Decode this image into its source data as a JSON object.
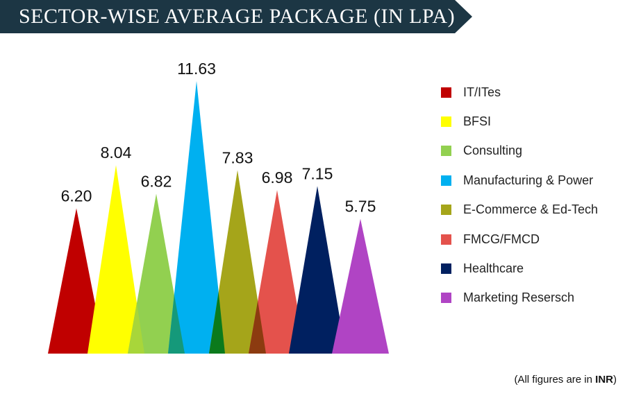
{
  "header": {
    "title": "SECTOR-WISE AVERAGE PACKAGE (IN LPA)"
  },
  "footnote": {
    "prefix": "(All figures are in ",
    "emphasis": "INR",
    "suffix": ")"
  },
  "colors": {
    "banner": "#1c3644",
    "overlap_dark_green": "#0b7a1c",
    "overlap_light_green": "#a8d63a",
    "overlap_teal": "#15997a",
    "overlap_brown": "#8c3b10"
  },
  "chart_data": {
    "type": "triangle-bar",
    "title": "SECTOR-WISE AVERAGE PACKAGE (IN LPA)",
    "legend_position": "right",
    "categories": [
      "IT/ITes",
      "BFSI",
      "Consulting",
      "Manufacturing & Power",
      "E-Commerce & Ed-Tech",
      "FMCG/FMCD",
      "Healthcare",
      "Marketing Resersch"
    ],
    "values": [
      6.2,
      8.04,
      6.82,
      11.63,
      7.83,
      6.98,
      7.15,
      5.75
    ],
    "value_labels": [
      "6.20",
      "8.04",
      "6.82",
      "11.63",
      "7.83",
      "6.98",
      "7.15",
      "5.75"
    ],
    "colors": [
      "#c00000",
      "#ffff00",
      "#92d050",
      "#00b0f0",
      "#a5a51a",
      "#e4524c",
      "#002060",
      "#b044c4"
    ]
  }
}
